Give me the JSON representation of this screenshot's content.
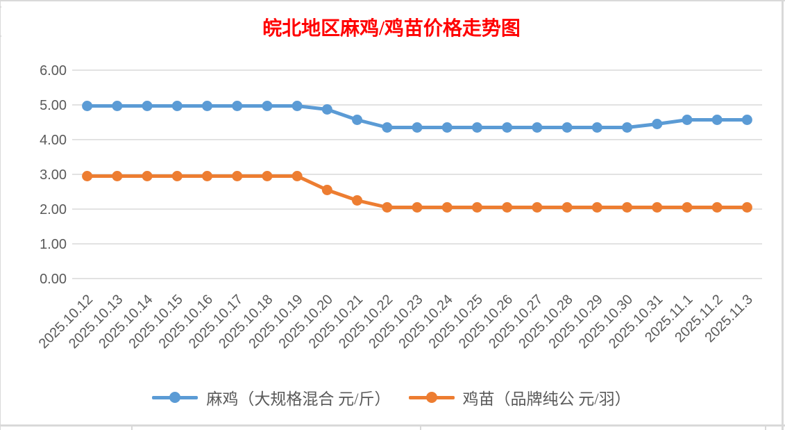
{
  "chart_data": {
    "type": "line",
    "title": "皖北地区麻鸡/鸡苗价格走势图",
    "title_color": "#FF0000",
    "categories": [
      "2025.10.12",
      "2025.10.13",
      "2025.10.14",
      "2025.10.15",
      "2025.10.16",
      "2025.10.17",
      "2025.10.18",
      "2025.10.19",
      "2025.10.20",
      "2025.10.21",
      "2025.10.22",
      "2025.10.23",
      "2025.10.24",
      "2025.10.25",
      "2025.10.26",
      "2025.10.27",
      "2025.10.28",
      "2025.10.29",
      "2025.10.30",
      "2025.10.31",
      "2025.11.1",
      "2025.11.2",
      "2025.11.3"
    ],
    "series": [
      {
        "name": "麻鸡（大规格混合 元/斤）",
        "color": "#5B9BD5",
        "values": [
          4.97,
          4.97,
          4.97,
          4.97,
          4.97,
          4.97,
          4.97,
          4.97,
          4.87,
          4.57,
          4.35,
          4.35,
          4.35,
          4.35,
          4.35,
          4.35,
          4.35,
          4.35,
          4.35,
          4.45,
          4.57,
          4.57,
          4.57
        ]
      },
      {
        "name": "鸡苗（品牌纯公 元/羽）",
        "color": "#ED7D31",
        "values": [
          2.95,
          2.95,
          2.95,
          2.95,
          2.95,
          2.95,
          2.95,
          2.95,
          2.55,
          2.25,
          2.05,
          2.05,
          2.05,
          2.05,
          2.05,
          2.05,
          2.05,
          2.05,
          2.05,
          2.05,
          2.05,
          2.05,
          2.05
        ]
      }
    ],
    "xlabel": "",
    "ylabel": "",
    "ylim": [
      0,
      6
    ],
    "ytick_step": 1,
    "ytick_labels": [
      "0.00",
      "1.00",
      "2.00",
      "3.00",
      "4.00",
      "5.00",
      "6.00"
    ],
    "grid": true,
    "gridline_color": "#D9D9D9",
    "axis_text_color": "#595959",
    "legend_position": "bottom",
    "x_label_rotation_deg": -45
  }
}
